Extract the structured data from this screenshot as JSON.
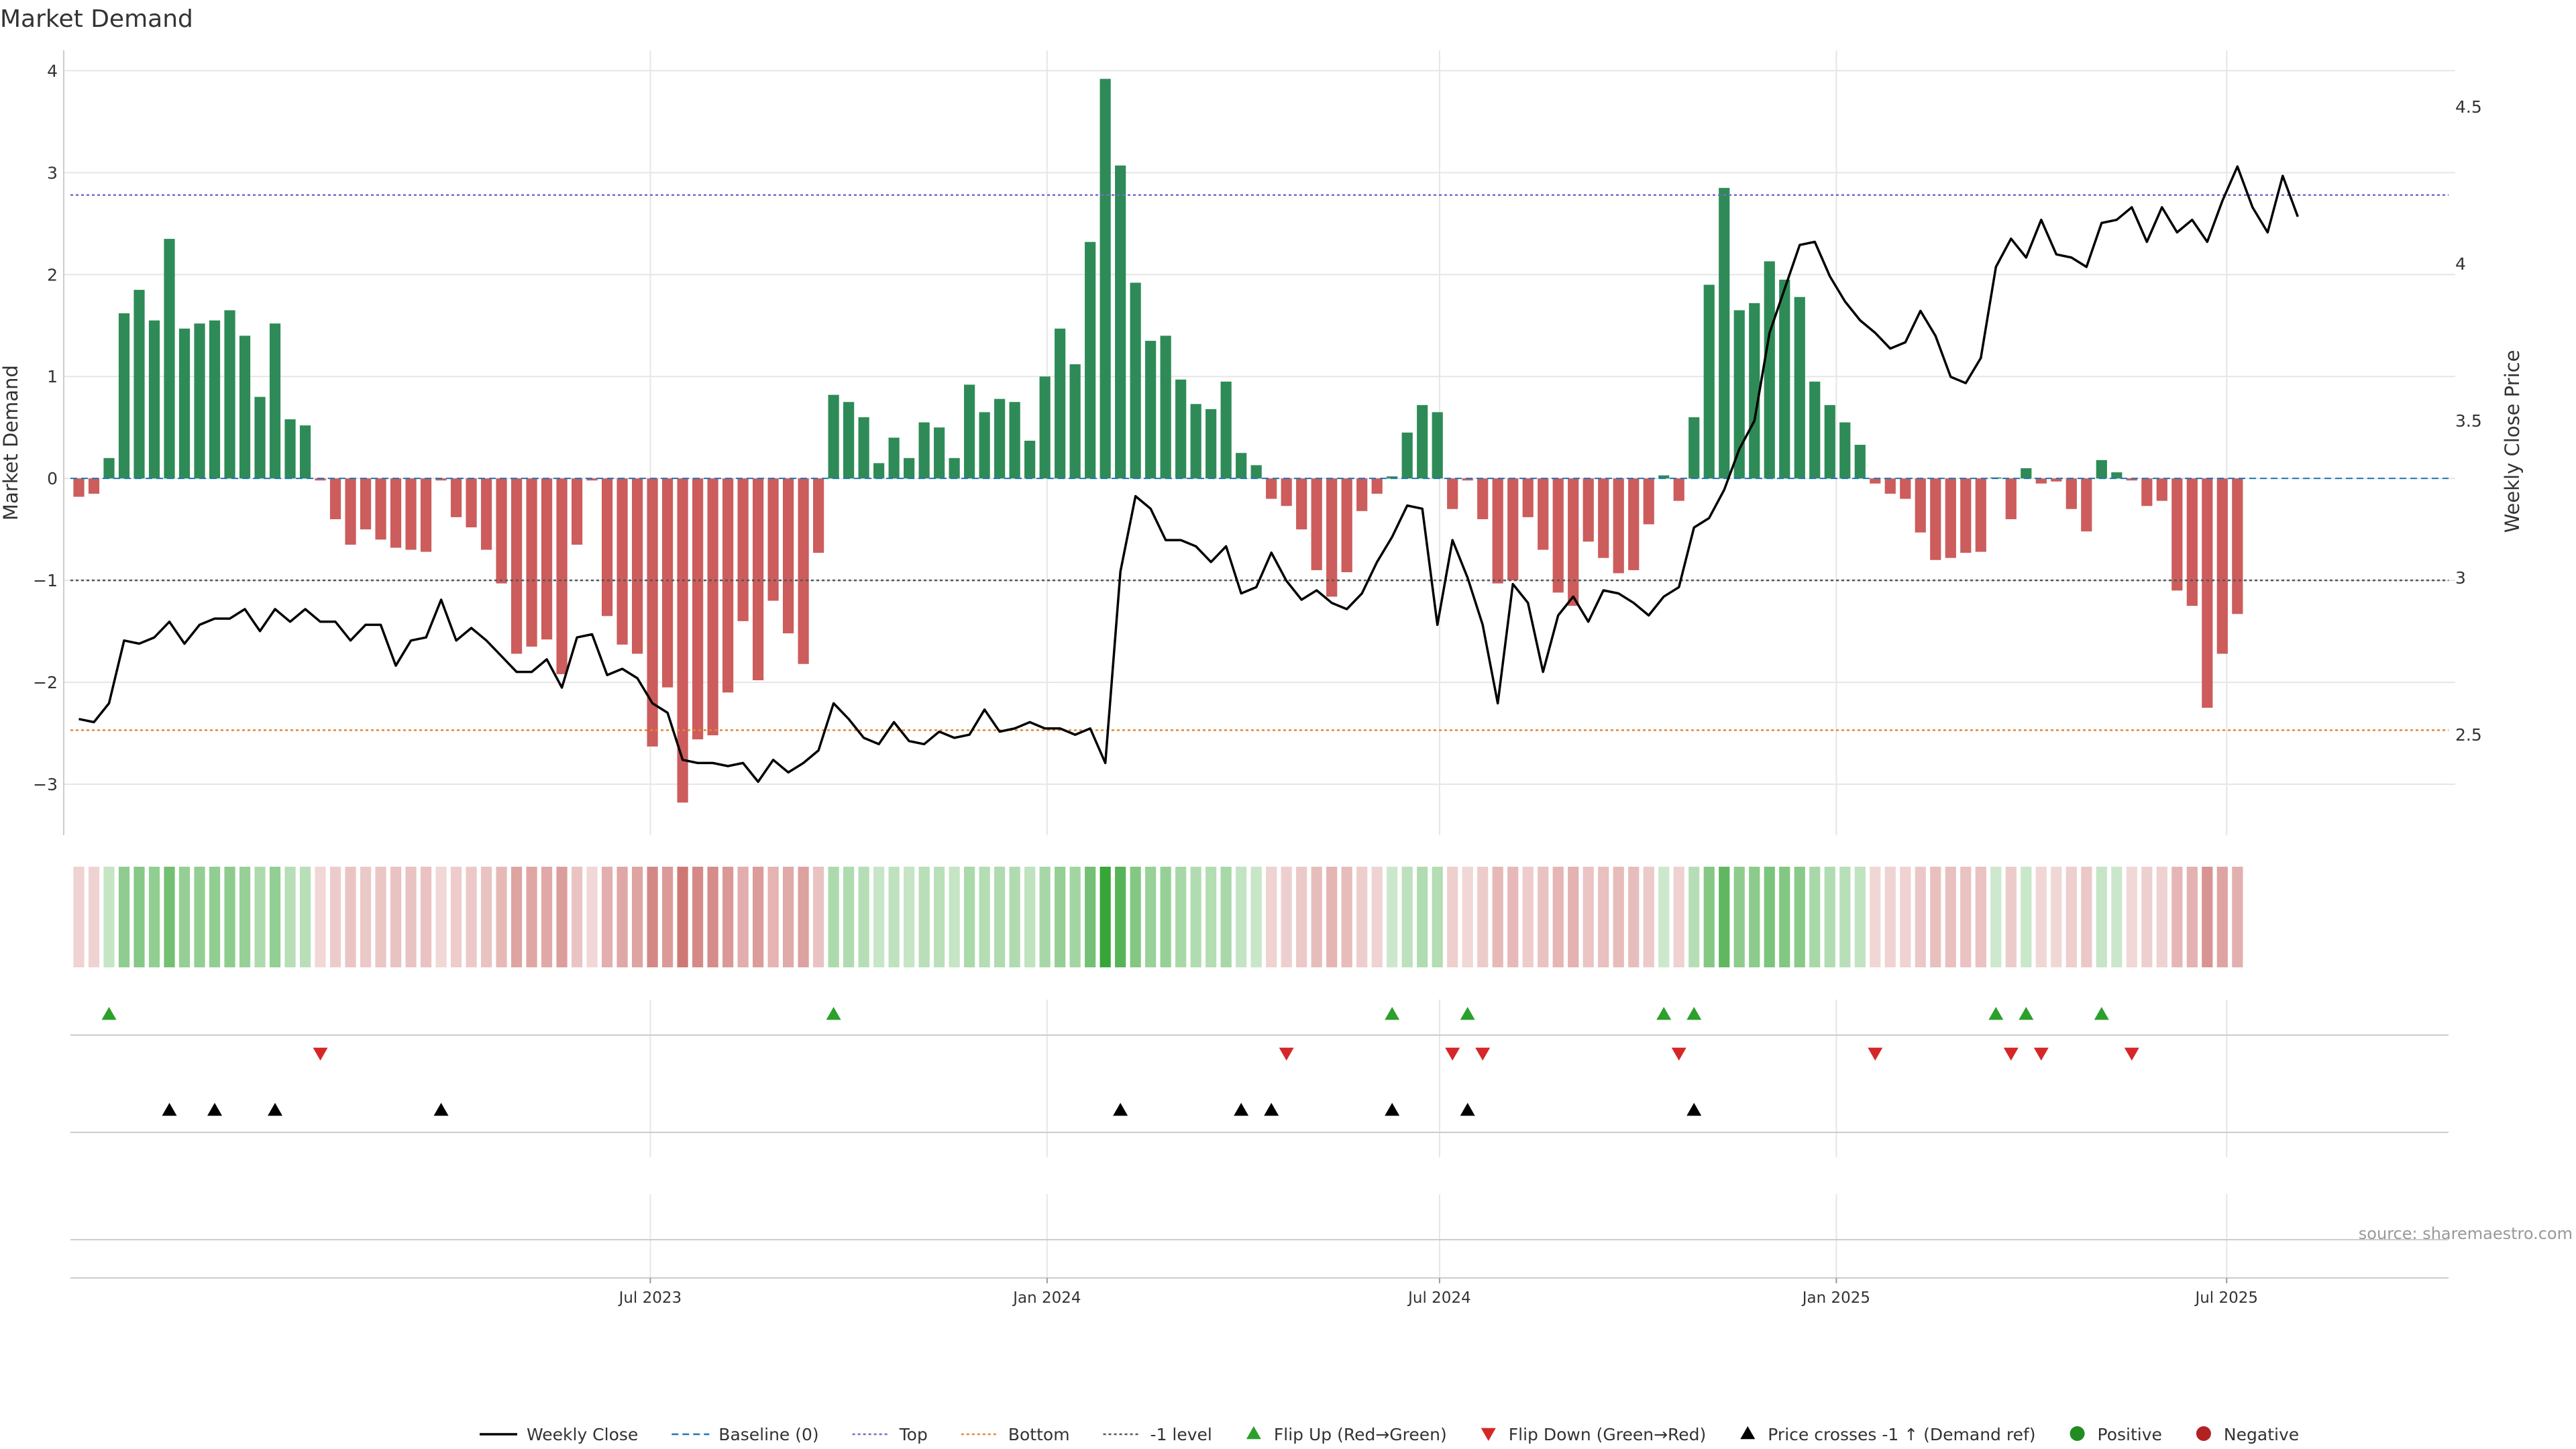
{
  "chart_data": {
    "type": "bar",
    "title": "Market Demand",
    "ylabel_left": "Market Demand",
    "ylabel_right": "Weekly Close Price",
    "source": "source: sharemaestro.com",
    "ylim_left": [
      -3.5,
      4.2
    ],
    "ylim_right": [
      2.18,
      4.68
    ],
    "yticks_left": [
      4,
      3,
      2,
      1,
      0,
      -1,
      -2,
      -3
    ],
    "yticks_left_labels": [
      "4",
      "3",
      "2",
      "1",
      "0",
      "−1",
      "−2",
      "−3"
    ],
    "yticks_right": [
      4.5,
      4,
      3.5,
      3,
      2.5
    ],
    "yticks_right_labels": [
      "4.5",
      "4",
      "3.5",
      "3",
      "2.5"
    ],
    "reference_lines": {
      "top": 2.78,
      "bottom": -2.47,
      "minus_one": -1.0,
      "baseline": 0
    },
    "x_start_date": "2022-10-02",
    "x_end_date": "2025-10-15",
    "bar_start_date": "2022-10-09",
    "weeks": 144,
    "xticks": [
      {
        "date": "2023-07-01",
        "label": "Jul 2023"
      },
      {
        "date": "2024-01-01",
        "label": "Jan 2024"
      },
      {
        "date": "2024-07-01",
        "label": "Jul 2024"
      },
      {
        "date": "2025-01-01",
        "label": "Jan 2025"
      },
      {
        "date": "2025-07-01",
        "label": "Jul 2025"
      }
    ],
    "demand": [
      -0.18,
      -0.15,
      0.2,
      1.62,
      1.85,
      1.55,
      2.35,
      1.47,
      1.52,
      1.55,
      1.65,
      1.4,
      0.8,
      1.52,
      0.58,
      0.52,
      -0.02,
      -0.4,
      -0.65,
      -0.5,
      -0.6,
      -0.68,
      -0.7,
      -0.72,
      -0.02,
      -0.38,
      -0.48,
      -0.7,
      -1.03,
      -1.72,
      -1.65,
      -1.58,
      -1.92,
      -0.65,
      -0.02,
      -1.35,
      -1.63,
      -1.72,
      -2.63,
      -2.05,
      -3.18,
      -2.56,
      -2.52,
      -2.1,
      -1.4,
      -1.98,
      -1.2,
      -1.52,
      -1.82,
      -0.73,
      0.82,
      0.75,
      0.6,
      0.15,
      0.4,
      0.2,
      0.55,
      0.5,
      0.2,
      0.92,
      0.65,
      0.78,
      0.75,
      0.37,
      1.0,
      1.47,
      1.12,
      2.32,
      3.92,
      3.07,
      1.92,
      1.35,
      1.4,
      0.97,
      0.73,
      0.68,
      0.95,
      0.25,
      0.13,
      -0.2,
      -0.27,
      -0.5,
      -0.9,
      -1.16,
      -0.92,
      -0.32,
      -0.15,
      0.02,
      0.45,
      0.72,
      0.65,
      -0.3,
      -0.02,
      -0.4,
      -1.03,
      -1.0,
      -0.38,
      -0.7,
      -1.12,
      -1.25,
      -0.62,
      -0.78,
      -0.93,
      -0.9,
      -0.45,
      0.03,
      -0.22,
      0.6,
      1.9,
      2.85,
      1.65,
      1.72,
      2.13,
      1.95,
      1.78,
      0.95,
      0.72,
      0.55,
      0.33,
      -0.05,
      -0.15,
      -0.2,
      -0.53,
      -0.8,
      -0.78,
      -0.73,
      -0.72,
      0.01,
      -0.4,
      0.1,
      -0.05,
      -0.03,
      -0.3,
      -0.52,
      0.18,
      0.06,
      -0.02,
      -0.27,
      -0.22,
      -1.1,
      -1.25,
      -2.25,
      -1.72,
      -1.33
    ],
    "weekly_close": [
      2.55,
      2.54,
      2.6,
      2.8,
      2.79,
      2.81,
      2.86,
      2.79,
      2.85,
      2.87,
      2.87,
      2.9,
      2.83,
      2.9,
      2.86,
      2.9,
      2.86,
      2.86,
      2.8,
      2.85,
      2.85,
      2.72,
      2.8,
      2.81,
      2.93,
      2.8,
      2.84,
      2.8,
      2.75,
      2.7,
      2.7,
      2.74,
      2.65,
      2.81,
      2.82,
      2.69,
      2.71,
      2.68,
      2.6,
      2.57,
      2.42,
      2.41,
      2.41,
      2.4,
      2.41,
      2.35,
      2.42,
      2.38,
      2.41,
      2.45,
      2.6,
      2.55,
      2.49,
      2.47,
      2.54,
      2.48,
      2.47,
      2.51,
      2.49,
      2.5,
      2.58,
      2.51,
      2.52,
      2.54,
      2.52,
      2.52,
      2.5,
      2.52,
      2.41,
      3.02,
      3.26,
      3.22,
      3.12,
      3.12,
      3.1,
      3.05,
      3.1,
      2.95,
      2.97,
      3.08,
      2.99,
      2.93,
      2.96,
      2.92,
      2.9,
      2.95,
      3.05,
      3.13,
      3.23,
      3.22,
      2.85,
      3.12,
      3.0,
      2.85,
      2.6,
      2.98,
      2.92,
      2.7,
      2.88,
      2.94,
      2.86,
      2.96,
      2.95,
      2.92,
      2.88,
      2.94,
      2.97,
      3.16,
      3.19,
      3.28,
      3.41,
      3.5,
      3.78,
      3.92,
      4.06,
      4.07,
      3.96,
      3.88,
      3.82,
      3.78,
      3.73,
      3.75,
      3.85,
      3.77,
      3.64,
      3.62,
      3.7,
      3.99,
      4.08,
      4.02,
      4.14,
      4.03,
      4.02,
      3.99,
      4.13,
      4.14,
      4.18,
      4.07,
      4.18,
      4.1,
      4.14,
      4.07,
      4.2,
      4.31,
      4.18,
      4.1,
      4.28,
      4.15
    ],
    "flip_up_weeks": [
      2,
      50,
      87,
      92,
      105,
      107,
      127,
      129,
      134
    ],
    "flip_down_weeks": [
      16,
      80,
      91,
      93,
      106,
      119,
      128,
      130,
      136
    ],
    "price_cross_weeks": [
      6,
      9,
      13,
      24,
      69,
      77,
      79,
      87,
      92,
      107
    ],
    "legend": [
      {
        "label": "Weekly Close",
        "type": "line-solid",
        "color": "#000000"
      },
      {
        "label": "Baseline (0)",
        "type": "line-dashed",
        "color": "#1f77b4"
      },
      {
        "label": "Top",
        "type": "line-dotted",
        "color": "#7b68c4"
      },
      {
        "label": "Bottom",
        "type": "line-dotted",
        "color": "#e08a2b"
      },
      {
        "label": "-1 level",
        "type": "line-dotted",
        "color": "#555555"
      },
      {
        "label": "Flip Up (Red→Green)",
        "type": "triangle-up",
        "color": "#2ca02c"
      },
      {
        "label": "Flip Down (Green→Red)",
        "type": "triangle-down",
        "color": "#d62728"
      },
      {
        "label": "Price crosses -1 ↑ (Demand ref)",
        "type": "triangle-up",
        "color": "#000000"
      },
      {
        "label": "Positive",
        "type": "dot",
        "color": "#228b22"
      },
      {
        "label": "Negative",
        "type": "dot",
        "color": "#b22222"
      }
    ],
    "colors": {
      "positive_bar": "#2e8b57",
      "negative_bar": "#cd5c5c",
      "grid": "#e6e6e6",
      "axis": "#cccccc"
    }
  }
}
